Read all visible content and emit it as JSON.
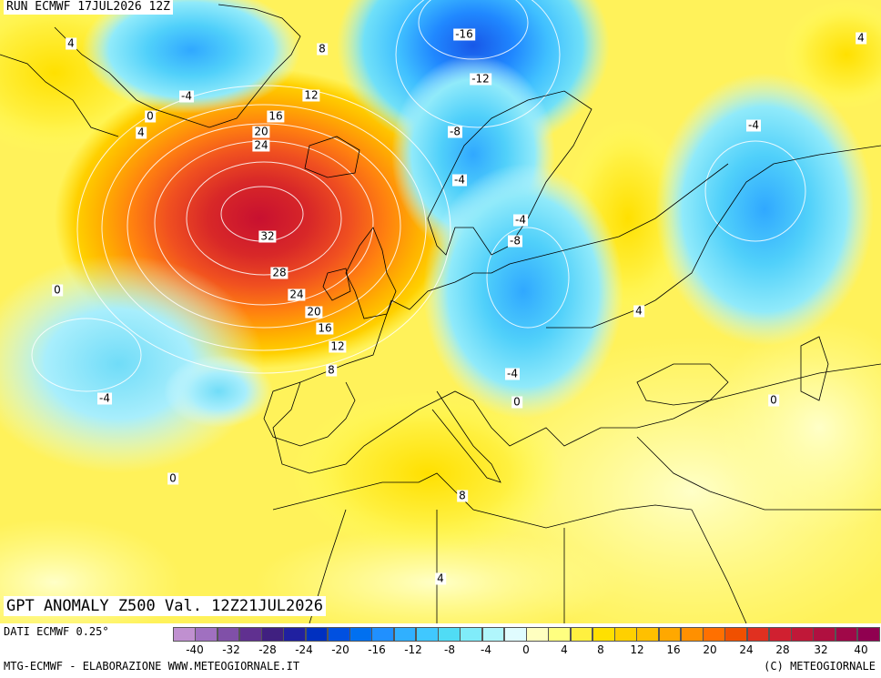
{
  "header": {
    "run_title": "RUN ECMWF 17JUL2026 12Z",
    "anomaly_title": "GPT ANOMALY Z500 Val. 12Z21JUL2026"
  },
  "footer": {
    "dati": "DATI ECMWF 0.25°",
    "credit_left": "MTG-ECMWF - ELABORAZIONE WWW.METEOGIORNALE.IT",
    "credit_right": "(C) METEOGIORNALE"
  },
  "legend": {
    "colors": [
      "#c090d0",
      "#a070c0",
      "#8050a8",
      "#603090",
      "#402080",
      "#2020a0",
      "#0030c0",
      "#0050e0",
      "#0070f0",
      "#2090ff",
      "#30b0ff",
      "#40c8ff",
      "#50dcf5",
      "#80ecfa",
      "#b0f6fc",
      "#e0fcfe",
      "#ffffc0",
      "#ffff80",
      "#fff040",
      "#ffe000",
      "#ffd000",
      "#ffc000",
      "#ffa800",
      "#ff9000",
      "#ff7000",
      "#f05000",
      "#e03020",
      "#d02030",
      "#c01838",
      "#b01040",
      "#a00848",
      "#900050"
    ],
    "tick_labels": [
      "-40",
      "-32",
      "-28",
      "-24",
      "-20",
      "-16",
      "-12",
      "-8",
      "-4",
      "0",
      "4",
      "8",
      "12",
      "16",
      "20",
      "24",
      "28",
      "32",
      "40"
    ]
  },
  "map_data": {
    "anomaly_centers": [
      {
        "name": "atlantic-high",
        "value": 32
      },
      {
        "name": "scandinavia-low",
        "value": -16
      },
      {
        "name": "russia-low",
        "value": -4
      },
      {
        "name": "atlantic-low",
        "value": -4
      },
      {
        "name": "baltic-low",
        "value": -8
      }
    ],
    "contour_labels": [
      "4",
      "8",
      "-4",
      "0",
      "4",
      "12",
      "16",
      "20",
      "24",
      "-16",
      "-12",
      "-8",
      "-4",
      "-4",
      "-8",
      "4",
      "32",
      "28",
      "24",
      "20",
      "16",
      "12",
      "8",
      "0",
      "-4",
      "-4",
      "0",
      "0",
      "0",
      "8",
      "4",
      "4"
    ]
  }
}
